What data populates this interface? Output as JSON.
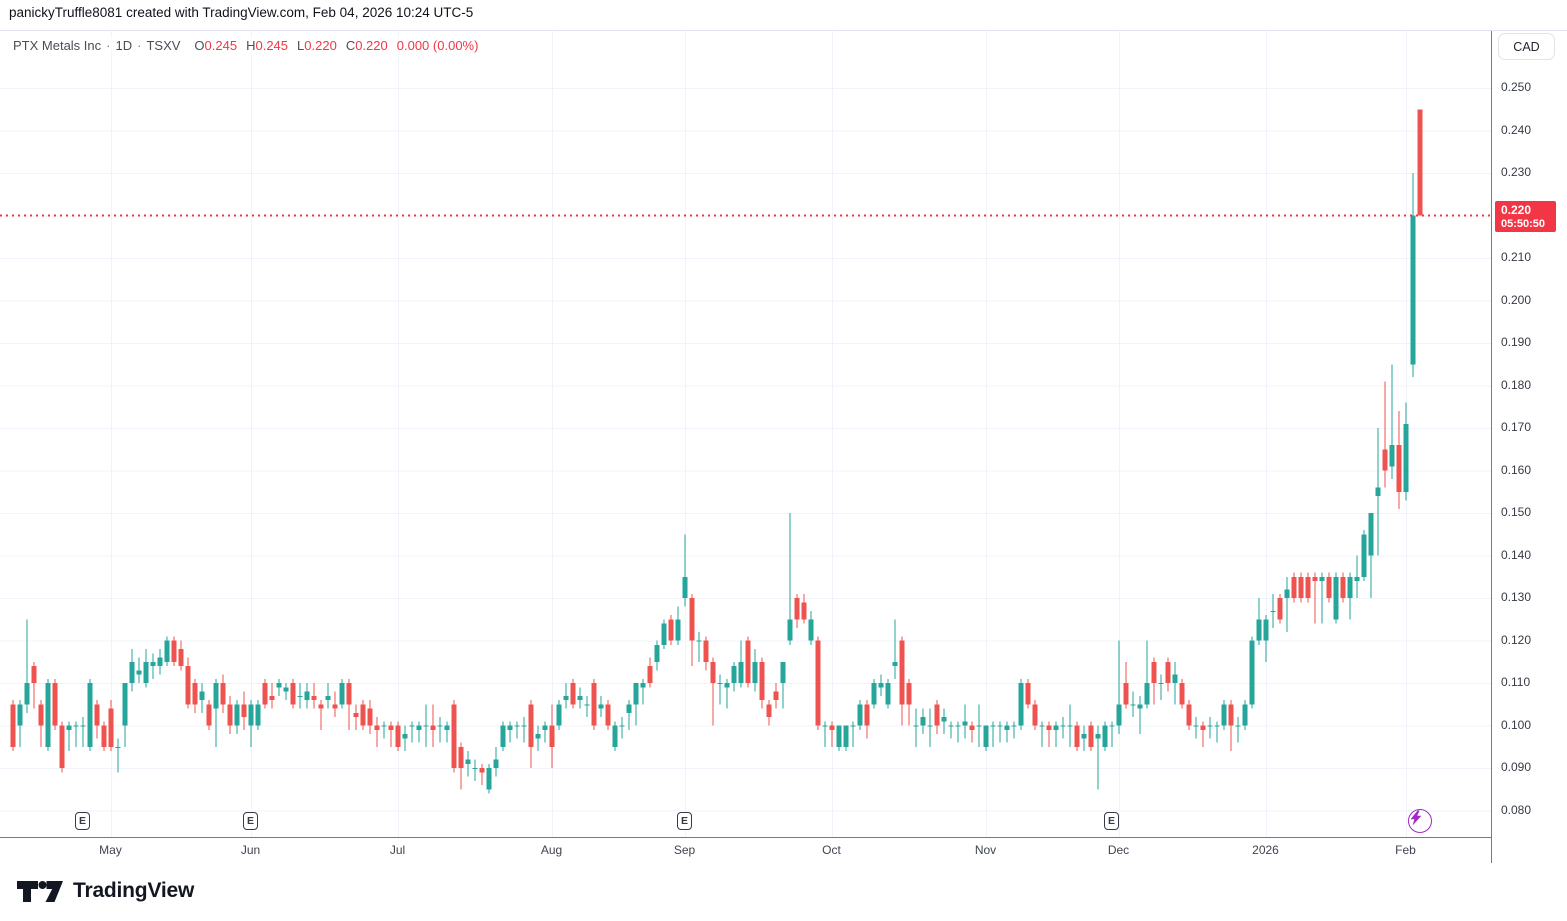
{
  "header": {
    "attribution": "panickyTruffle8081 created with TradingView.com, Feb 04, 2026 10:24 UTC-5"
  },
  "legend": {
    "symbol": "PTX Metals Inc",
    "separator": "·",
    "interval": "1D",
    "exchange": "TSXV",
    "ohlc": [
      {
        "label": "O",
        "value": "0.245"
      },
      {
        "label": "H",
        "value": "0.245"
      },
      {
        "label": "L",
        "value": "0.220"
      },
      {
        "label": "C",
        "value": "0.220"
      }
    ],
    "change": "0.000",
    "change_pct": "(0.00%)"
  },
  "price_axis": {
    "currency": "CAD",
    "ticks": [
      "0.250",
      "0.240",
      "0.230",
      "0.220",
      "0.210",
      "0.200",
      "0.190",
      "0.180",
      "0.170",
      "0.160",
      "0.150",
      "0.140",
      "0.130",
      "0.120",
      "0.110",
      "0.100",
      "0.090",
      "0.080"
    ],
    "last_price": {
      "value": "0.220",
      "countdown": "05:50:50"
    }
  },
  "time_axis": {
    "labels": [
      {
        "text": "May",
        "index": 14
      },
      {
        "text": "Jun",
        "index": 34
      },
      {
        "text": "Jul",
        "index": 55
      },
      {
        "text": "Aug",
        "index": 77
      },
      {
        "text": "Sep",
        "index": 96
      },
      {
        "text": "Oct",
        "index": 117
      },
      {
        "text": "Nov",
        "index": 139
      },
      {
        "text": "Dec",
        "index": 158
      },
      {
        "text": "2026",
        "index": 179
      },
      {
        "text": "Feb",
        "index": 199
      }
    ]
  },
  "events": {
    "earnings_label": "E",
    "earnings_indices": [
      10,
      34,
      96,
      157
    ],
    "flash_marker_index": 201
  },
  "footer": {
    "brand": "TradingView"
  },
  "colors": {
    "up": "#26a69a",
    "down": "#ef5350",
    "last_label_bg": "#f23645",
    "dotted_line": "#f23645",
    "grid": "#f0f3fa",
    "axis_text": "#363a45",
    "marker_purple": "#a229c4"
  },
  "chart_data": {
    "type": "candlestick",
    "title": "PTX Metals Inc · 1D · TSXV",
    "symbol": "PTX Metals Inc",
    "exchange": "TSXV",
    "interval": "1D",
    "currency": "CAD",
    "x_range": "mid-April 2025 to Feb 04 2026, daily candles",
    "ylim": [
      0.076,
      0.264
    ],
    "yticks": [
      0.25,
      0.24,
      0.23,
      0.22,
      0.21,
      0.2,
      0.19,
      0.18,
      0.17,
      0.16,
      0.15,
      0.14,
      0.13,
      0.12,
      0.11,
      0.1,
      0.09,
      0.08
    ],
    "grid": true,
    "legend_position": "top-left",
    "last_price": 0.22,
    "last_close_line": 0.22,
    "candles_format": [
      "open",
      "high",
      "low",
      "close"
    ],
    "candles": [
      [
        0.105,
        0.106,
        0.094,
        0.095
      ],
      [
        0.1,
        0.106,
        0.095,
        0.105
      ],
      [
        0.105,
        0.125,
        0.103,
        0.11
      ],
      [
        0.114,
        0.115,
        0.104,
        0.11
      ],
      [
        0.105,
        0.106,
        0.095,
        0.1
      ],
      [
        0.095,
        0.111,
        0.094,
        0.11
      ],
      [
        0.11,
        0.111,
        0.099,
        0.1
      ],
      [
        0.1,
        0.101,
        0.089,
        0.09
      ],
      [
        0.099,
        0.101,
        0.094,
        0.1
      ],
      [
        0.1,
        0.101,
        0.095,
        0.1
      ],
      [
        0.1,
        0.102,
        0.095,
        0.1
      ],
      [
        0.095,
        0.111,
        0.094,
        0.11
      ],
      [
        0.105,
        0.106,
        0.097,
        0.1
      ],
      [
        0.1,
        0.101,
        0.094,
        0.095
      ],
      [
        0.104,
        0.106,
        0.094,
        0.095
      ],
      [
        0.095,
        0.097,
        0.089,
        0.095
      ],
      [
        0.1,
        0.11,
        0.095,
        0.11
      ],
      [
        0.11,
        0.118,
        0.108,
        0.115
      ],
      [
        0.112,
        0.116,
        0.11,
        0.113
      ],
      [
        0.11,
        0.118,
        0.109,
        0.115
      ],
      [
        0.114,
        0.117,
        0.111,
        0.115
      ],
      [
        0.114,
        0.118,
        0.112,
        0.116
      ],
      [
        0.115,
        0.121,
        0.114,
        0.12
      ],
      [
        0.12,
        0.121,
        0.114,
        0.115
      ],
      [
        0.118,
        0.12,
        0.113,
        0.114
      ],
      [
        0.114,
        0.116,
        0.104,
        0.105
      ],
      [
        0.11,
        0.111,
        0.103,
        0.105
      ],
      [
        0.106,
        0.11,
        0.103,
        0.108
      ],
      [
        0.105,
        0.106,
        0.099,
        0.1
      ],
      [
        0.104,
        0.111,
        0.095,
        0.11
      ],
      [
        0.11,
        0.112,
        0.103,
        0.105
      ],
      [
        0.105,
        0.107,
        0.098,
        0.1
      ],
      [
        0.1,
        0.106,
        0.098,
        0.105
      ],
      [
        0.105,
        0.108,
        0.099,
        0.102
      ],
      [
        0.1,
        0.106,
        0.095,
        0.105
      ],
      [
        0.1,
        0.106,
        0.099,
        0.105
      ],
      [
        0.11,
        0.111,
        0.104,
        0.105
      ],
      [
        0.107,
        0.11,
        0.104,
        0.106
      ],
      [
        0.109,
        0.111,
        0.107,
        0.11
      ],
      [
        0.108,
        0.11,
        0.106,
        0.109
      ],
      [
        0.11,
        0.111,
        0.104,
        0.105
      ],
      [
        0.107,
        0.11,
        0.104,
        0.107
      ],
      [
        0.106,
        0.11,
        0.104,
        0.108
      ],
      [
        0.107,
        0.11,
        0.104,
        0.106
      ],
      [
        0.105,
        0.106,
        0.099,
        0.104
      ],
      [
        0.106,
        0.11,
        0.104,
        0.107
      ],
      [
        0.105,
        0.108,
        0.102,
        0.104
      ],
      [
        0.105,
        0.111,
        0.104,
        0.11
      ],
      [
        0.11,
        0.111,
        0.099,
        0.105
      ],
      [
        0.103,
        0.105,
        0.099,
        0.102
      ],
      [
        0.105,
        0.106,
        0.099,
        0.1
      ],
      [
        0.104,
        0.106,
        0.098,
        0.1
      ],
      [
        0.1,
        0.102,
        0.095,
        0.099
      ],
      [
        0.1,
        0.101,
        0.097,
        0.1
      ],
      [
        0.1,
        0.101,
        0.095,
        0.099
      ],
      [
        0.1,
        0.101,
        0.094,
        0.095
      ],
      [
        0.097,
        0.1,
        0.094,
        0.098
      ],
      [
        0.1,
        0.101,
        0.096,
        0.1
      ],
      [
        0.099,
        0.101,
        0.096,
        0.1
      ],
      [
        0.1,
        0.105,
        0.095,
        0.1
      ],
      [
        0.1,
        0.105,
        0.095,
        0.099
      ],
      [
        0.1,
        0.102,
        0.096,
        0.1
      ],
      [
        0.099,
        0.101,
        0.096,
        0.1
      ],
      [
        0.105,
        0.106,
        0.089,
        0.09
      ],
      [
        0.095,
        0.096,
        0.085,
        0.09
      ],
      [
        0.091,
        0.094,
        0.088,
        0.092
      ],
      [
        0.09,
        0.092,
        0.087,
        0.09
      ],
      [
        0.09,
        0.091,
        0.086,
        0.089
      ],
      [
        0.085,
        0.091,
        0.084,
        0.09
      ],
      [
        0.09,
        0.095,
        0.088,
        0.092
      ],
      [
        0.095,
        0.101,
        0.094,
        0.1
      ],
      [
        0.099,
        0.101,
        0.096,
        0.1
      ],
      [
        0.1,
        0.101,
        0.097,
        0.1
      ],
      [
        0.1,
        0.102,
        0.096,
        0.1
      ],
      [
        0.105,
        0.106,
        0.09,
        0.095
      ],
      [
        0.097,
        0.1,
        0.094,
        0.098
      ],
      [
        0.099,
        0.101,
        0.096,
        0.1
      ],
      [
        0.1,
        0.105,
        0.09,
        0.095
      ],
      [
        0.1,
        0.106,
        0.099,
        0.105
      ],
      [
        0.106,
        0.11,
        0.104,
        0.107
      ],
      [
        0.11,
        0.111,
        0.104,
        0.105
      ],
      [
        0.106,
        0.109,
        0.104,
        0.107
      ],
      [
        0.105,
        0.107,
        0.102,
        0.105
      ],
      [
        0.11,
        0.111,
        0.099,
        0.1
      ],
      [
        0.104,
        0.107,
        0.102,
        0.105
      ],
      [
        0.105,
        0.106,
        0.099,
        0.1
      ],
      [
        0.095,
        0.101,
        0.094,
        0.1
      ],
      [
        0.1,
        0.102,
        0.097,
        0.1
      ],
      [
        0.103,
        0.106,
        0.099,
        0.105
      ],
      [
        0.105,
        0.11,
        0.1,
        0.11
      ],
      [
        0.109,
        0.111,
        0.105,
        0.11
      ],
      [
        0.114,
        0.116,
        0.109,
        0.11
      ],
      [
        0.115,
        0.12,
        0.113,
        0.119
      ],
      [
        0.119,
        0.125,
        0.118,
        0.124
      ],
      [
        0.125,
        0.126,
        0.119,
        0.12
      ],
      [
        0.12,
        0.128,
        0.119,
        0.125
      ],
      [
        0.13,
        0.145,
        0.128,
        0.135
      ],
      [
        0.13,
        0.131,
        0.114,
        0.12
      ],
      [
        0.12,
        0.122,
        0.115,
        0.12
      ],
      [
        0.12,
        0.121,
        0.113,
        0.115
      ],
      [
        0.115,
        0.116,
        0.1,
        0.11
      ],
      [
        0.11,
        0.112,
        0.105,
        0.11
      ],
      [
        0.109,
        0.111,
        0.104,
        0.11
      ],
      [
        0.11,
        0.115,
        0.108,
        0.114
      ],
      [
        0.11,
        0.12,
        0.109,
        0.115
      ],
      [
        0.12,
        0.121,
        0.109,
        0.11
      ],
      [
        0.11,
        0.118,
        0.108,
        0.115
      ],
      [
        0.115,
        0.116,
        0.104,
        0.106
      ],
      [
        0.105,
        0.106,
        0.1,
        0.102
      ],
      [
        0.108,
        0.11,
        0.104,
        0.106
      ],
      [
        0.11,
        0.115,
        0.104,
        0.115
      ],
      [
        0.12,
        0.15,
        0.119,
        0.125
      ],
      [
        0.13,
        0.131,
        0.123,
        0.125
      ],
      [
        0.129,
        0.131,
        0.124,
        0.125
      ],
      [
        0.12,
        0.127,
        0.119,
        0.125
      ],
      [
        0.12,
        0.121,
        0.099,
        0.1
      ],
      [
        0.1,
        0.101,
        0.095,
        0.1
      ],
      [
        0.1,
        0.101,
        0.095,
        0.099
      ],
      [
        0.095,
        0.1,
        0.094,
        0.1
      ],
      [
        0.095,
        0.1,
        0.094,
        0.1
      ],
      [
        0.1,
        0.101,
        0.095,
        0.1
      ],
      [
        0.1,
        0.106,
        0.099,
        0.105
      ],
      [
        0.105,
        0.106,
        0.097,
        0.1
      ],
      [
        0.105,
        0.111,
        0.104,
        0.11
      ],
      [
        0.109,
        0.112,
        0.107,
        0.11
      ],
      [
        0.105,
        0.111,
        0.104,
        0.11
      ],
      [
        0.114,
        0.125,
        0.111,
        0.115
      ],
      [
        0.12,
        0.121,
        0.1,
        0.105
      ],
      [
        0.11,
        0.111,
        0.1,
        0.105
      ],
      [
        0.1,
        0.104,
        0.095,
        0.1
      ],
      [
        0.1,
        0.104,
        0.098,
        0.102
      ],
      [
        0.1,
        0.104,
        0.095,
        0.1
      ],
      [
        0.105,
        0.106,
        0.098,
        0.1
      ],
      [
        0.101,
        0.104,
        0.098,
        0.102
      ],
      [
        0.1,
        0.101,
        0.097,
        0.1
      ],
      [
        0.1,
        0.101,
        0.096,
        0.1
      ],
      [
        0.1,
        0.105,
        0.097,
        0.101
      ],
      [
        0.1,
        0.101,
        0.096,
        0.099
      ],
      [
        0.1,
        0.105,
        0.095,
        0.1
      ],
      [
        0.095,
        0.1,
        0.094,
        0.1
      ],
      [
        0.1,
        0.101,
        0.095,
        0.1
      ],
      [
        0.1,
        0.101,
        0.096,
        0.1
      ],
      [
        0.099,
        0.101,
        0.096,
        0.1
      ],
      [
        0.1,
        0.101,
        0.097,
        0.1
      ],
      [
        0.1,
        0.111,
        0.099,
        0.11
      ],
      [
        0.11,
        0.111,
        0.104,
        0.105
      ],
      [
        0.105,
        0.106,
        0.099,
        0.1
      ],
      [
        0.1,
        0.101,
        0.095,
        0.1
      ],
      [
        0.1,
        0.101,
        0.095,
        0.099
      ],
      [
        0.099,
        0.101,
        0.095,
        0.1
      ],
      [
        0.1,
        0.102,
        0.097,
        0.1
      ],
      [
        0.1,
        0.105,
        0.095,
        0.1
      ],
      [
        0.1,
        0.101,
        0.094,
        0.095
      ],
      [
        0.097,
        0.1,
        0.094,
        0.098
      ],
      [
        0.1,
        0.101,
        0.094,
        0.095
      ],
      [
        0.097,
        0.1,
        0.085,
        0.098
      ],
      [
        0.095,
        0.101,
        0.094,
        0.1
      ],
      [
        0.1,
        0.101,
        0.095,
        0.1
      ],
      [
        0.1,
        0.12,
        0.098,
        0.105
      ],
      [
        0.11,
        0.115,
        0.104,
        0.105
      ],
      [
        0.105,
        0.108,
        0.102,
        0.105
      ],
      [
        0.104,
        0.107,
        0.098,
        0.105
      ],
      [
        0.105,
        0.12,
        0.104,
        0.11
      ],
      [
        0.115,
        0.116,
        0.105,
        0.11
      ],
      [
        0.11,
        0.112,
        0.106,
        0.11
      ],
      [
        0.115,
        0.116,
        0.108,
        0.11
      ],
      [
        0.11,
        0.115,
        0.105,
        0.112
      ],
      [
        0.11,
        0.111,
        0.104,
        0.105
      ],
      [
        0.105,
        0.106,
        0.099,
        0.1
      ],
      [
        0.1,
        0.102,
        0.097,
        0.1
      ],
      [
        0.1,
        0.101,
        0.095,
        0.099
      ],
      [
        0.1,
        0.102,
        0.097,
        0.1
      ],
      [
        0.1,
        0.101,
        0.096,
        0.1
      ],
      [
        0.1,
        0.106,
        0.099,
        0.105
      ],
      [
        0.105,
        0.106,
        0.094,
        0.1
      ],
      [
        0.1,
        0.102,
        0.096,
        0.1
      ],
      [
        0.1,
        0.106,
        0.099,
        0.105
      ],
      [
        0.105,
        0.121,
        0.104,
        0.12
      ],
      [
        0.12,
        0.13,
        0.119,
        0.125
      ],
      [
        0.12,
        0.126,
        0.115,
        0.125
      ],
      [
        0.127,
        0.131,
        0.123,
        0.127
      ],
      [
        0.13,
        0.131,
        0.124,
        0.125
      ],
      [
        0.13,
        0.135,
        0.122,
        0.132
      ],
      [
        0.135,
        0.136,
        0.129,
        0.13
      ],
      [
        0.135,
        0.136,
        0.129,
        0.13
      ],
      [
        0.135,
        0.136,
        0.129,
        0.13
      ],
      [
        0.135,
        0.136,
        0.124,
        0.134
      ],
      [
        0.134,
        0.136,
        0.124,
        0.135
      ],
      [
        0.135,
        0.136,
        0.129,
        0.13
      ],
      [
        0.125,
        0.136,
        0.124,
        0.135
      ],
      [
        0.135,
        0.136,
        0.129,
        0.13
      ],
      [
        0.13,
        0.136,
        0.125,
        0.135
      ],
      [
        0.134,
        0.14,
        0.13,
        0.135
      ],
      [
        0.135,
        0.146,
        0.134,
        0.145
      ],
      [
        0.14,
        0.15,
        0.13,
        0.15
      ],
      [
        0.154,
        0.17,
        0.14,
        0.156
      ],
      [
        0.165,
        0.181,
        0.156,
        0.16
      ],
      [
        0.161,
        0.185,
        0.158,
        0.166
      ],
      [
        0.166,
        0.174,
        0.151,
        0.155
      ],
      [
        0.155,
        0.176,
        0.153,
        0.171
      ],
      [
        0.185,
        0.23,
        0.182,
        0.22
      ],
      [
        0.245,
        0.245,
        0.22,
        0.22
      ]
    ]
  }
}
